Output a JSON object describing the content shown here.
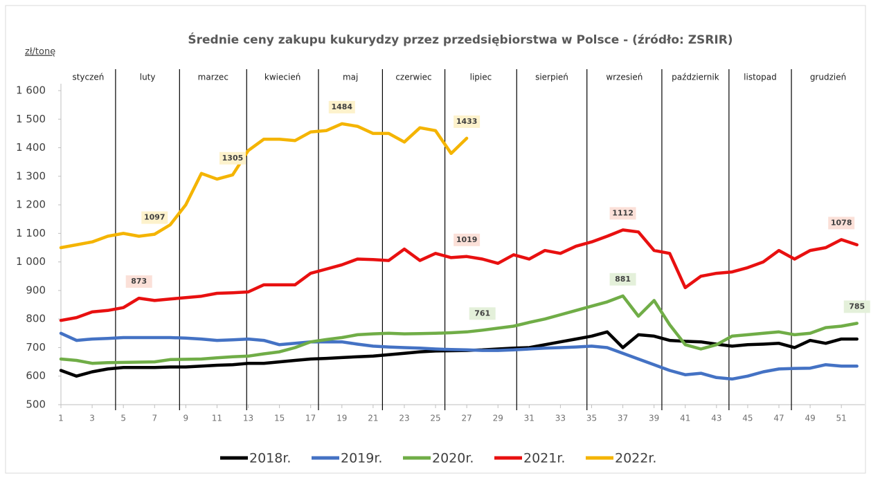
{
  "chart_data": {
    "type": "line",
    "title": "Średnie ceny zakupu kukurydzy przez przedsiębiorstwa w Polsce - (źródło: ZSRIR)",
    "y_label": "zł/tonę",
    "x": [
      1,
      2,
      3,
      4,
      5,
      6,
      7,
      8,
      9,
      10,
      11,
      12,
      13,
      14,
      15,
      16,
      17,
      18,
      19,
      20,
      21,
      22,
      23,
      24,
      25,
      26,
      27,
      28,
      29,
      30,
      31,
      32,
      33,
      34,
      35,
      36,
      37,
      38,
      39,
      40,
      41,
      42,
      43,
      44,
      45,
      46,
      47,
      48,
      49,
      50,
      51,
      52
    ],
    "xlim": [
      1,
      52.5
    ],
    "xticks": [
      1,
      3,
      5,
      7,
      9,
      11,
      13,
      15,
      17,
      19,
      21,
      23,
      25,
      27,
      29,
      31,
      33,
      35,
      37,
      39,
      41,
      43,
      45,
      47,
      49,
      51
    ],
    "ylim": [
      500,
      1600
    ],
    "yticks": [
      500,
      600,
      700,
      800,
      900,
      {
        "value": 1000,
        "label": "1 000"
      },
      {
        "value": 1100,
        "label": "1 100"
      },
      {
        "value": 1200,
        "label": "1 200"
      },
      {
        "value": 1300,
        "label": "1 300"
      },
      {
        "value": 1400,
        "label": "1 400"
      },
      {
        "value": 1500,
        "label": "1 500"
      },
      {
        "value": 1600,
        "label": "1 600"
      }
    ],
    "months": [
      "styczeń",
      "luty",
      "marzec",
      "kwiecień",
      "maj",
      "czerwiec",
      "lipiec",
      "sierpień",
      "wrzesień",
      "październik",
      "listopad",
      "grudzień"
    ],
    "month_boundaries": [
      4.5,
      8.6,
      12.9,
      17.5,
      21.6,
      25.6,
      30.2,
      34.7,
      39.5,
      43.8,
      47.8
    ],
    "series": [
      {
        "name": "2018r.",
        "color": "#000000",
        "values": [
          620,
          600,
          615,
          625,
          630,
          630,
          630,
          632,
          632,
          635,
          638,
          640,
          645,
          645,
          650,
          655,
          660,
          662,
          665,
          668,
          670,
          675,
          680,
          685,
          688,
          689,
          690,
          692,
          695,
          698,
          700,
          710,
          720,
          730,
          740,
          755,
          700,
          745,
          740,
          725,
          722,
          720,
          712,
          705,
          710,
          712,
          715,
          700,
          725,
          715,
          730,
          730
        ]
      },
      {
        "name": "2019r.",
        "color": "#4472c4",
        "values": [
          750,
          725,
          730,
          732,
          735,
          735,
          735,
          735,
          733,
          730,
          725,
          727,
          730,
          725,
          710,
          715,
          720,
          720,
          720,
          712,
          705,
          702,
          700,
          698,
          695,
          693,
          692,
          690,
          690,
          692,
          695,
          698,
          700,
          702,
          705,
          700,
          680,
          660,
          640,
          620,
          605,
          610,
          595,
          590,
          600,
          615,
          625,
          627,
          628,
          640,
          635,
          635
        ]
      },
      {
        "name": "2020r.",
        "color": "#70ad47",
        "values": [
          660,
          655,
          645,
          647,
          648,
          649,
          650,
          658,
          659,
          660,
          664,
          668,
          670,
          678,
          685,
          700,
          720,
          728,
          735,
          745,
          748,
          750,
          748,
          749,
          750,
          752,
          755,
          761,
          768,
          775,
          788,
          800,
          815,
          830,
          845,
          860,
          881,
          810,
          865,
          780,
          710,
          695,
          710,
          740,
          745,
          750,
          755,
          745,
          750,
          770,
          775,
          785
        ],
        "value_labels": [
          null,
          null,
          null,
          null,
          null,
          null,
          null,
          null,
          null,
          null,
          null,
          null,
          null,
          null,
          null,
          null,
          null,
          null,
          null,
          null,
          null,
          null,
          null,
          null,
          null,
          null,
          null,
          "761",
          null,
          null,
          null,
          null,
          null,
          null,
          null,
          null,
          "881",
          null,
          null,
          null,
          null,
          null,
          null,
          null,
          null,
          null,
          null,
          null,
          null,
          null,
          null,
          "785"
        ]
      },
      {
        "name": "2021r.",
        "color": "#e81010",
        "values": [
          795,
          805,
          825,
          830,
          840,
          873,
          865,
          870,
          875,
          880,
          890,
          892,
          895,
          920,
          920,
          920,
          960,
          975,
          990,
          1010,
          1008,
          1005,
          1045,
          1005,
          1030,
          1015,
          1019,
          1010,
          995,
          1025,
          1010,
          1040,
          1030,
          1055,
          1070,
          1090,
          1112,
          1105,
          1040,
          1030,
          910,
          950,
          960,
          965,
          980,
          1000,
          1040,
          1010,
          1040,
          1050,
          1078,
          1060
        ],
        "value_labels": [
          null,
          null,
          null,
          null,
          null,
          "873",
          null,
          null,
          null,
          null,
          null,
          null,
          null,
          null,
          null,
          null,
          null,
          null,
          null,
          null,
          null,
          null,
          null,
          null,
          null,
          null,
          "1019",
          null,
          null,
          null,
          null,
          null,
          null,
          null,
          null,
          null,
          "1112",
          null,
          null,
          null,
          null,
          null,
          null,
          null,
          null,
          null,
          null,
          null,
          null,
          null,
          "1078",
          null
        ]
      },
      {
        "name": "2022r.",
        "color": "#f4b400",
        "values": [
          1050,
          1060,
          1070,
          1090,
          1100,
          1090,
          1097,
          1130,
          1200,
          1310,
          1290,
          1305,
          1390,
          1430,
          1430,
          1425,
          1455,
          1460,
          1484,
          1475,
          1450,
          1450,
          1420,
          1470,
          1460,
          1380,
          1433,
          null,
          null,
          null,
          null,
          null,
          null,
          null,
          null,
          null,
          null,
          null,
          null,
          null,
          null,
          null,
          null,
          null,
          null,
          null,
          null,
          null,
          null,
          null,
          null,
          null
        ],
        "value_labels": [
          null,
          null,
          null,
          null,
          null,
          null,
          "1097",
          null,
          null,
          null,
          null,
          "1305",
          null,
          null,
          null,
          null,
          null,
          null,
          "1484",
          null,
          null,
          null,
          null,
          null,
          null,
          null,
          "1433",
          null,
          null,
          null,
          null,
          null,
          null,
          null,
          null,
          null,
          null,
          null,
          null,
          null,
          null,
          null,
          null,
          null,
          null,
          null,
          null,
          null,
          null,
          null,
          null,
          null
        ]
      }
    ]
  }
}
